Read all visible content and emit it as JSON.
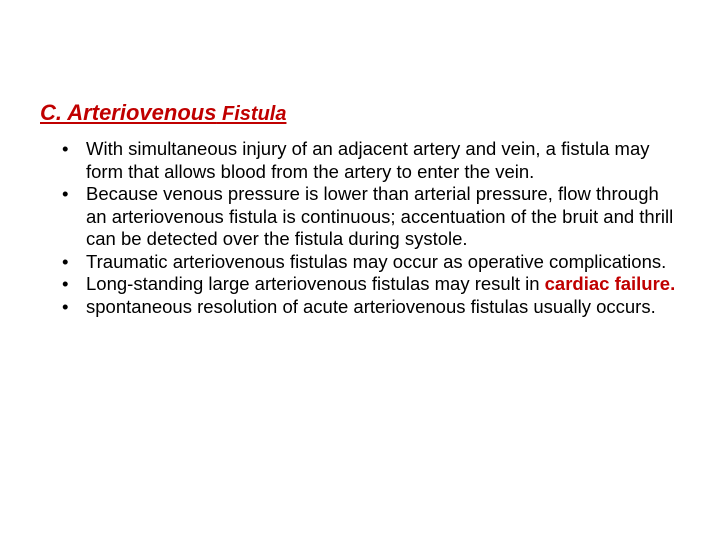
{
  "colors": {
    "heading": "#c00000",
    "body_text": "#000000",
    "highlight": "#c00000",
    "background": "#ffffff"
  },
  "heading": {
    "part1": "C. Arteriovenous",
    "part2": " Fistula"
  },
  "bullets": {
    "b1": "With simultaneous injury of an adjacent artery and vein, a fistula may form that allows blood from the artery to enter the vein.",
    "b2": " Because venous pressure is lower than arterial pressure, flow through an arteriovenous fistula is continuous; accentuation of the bruit and thrill can be detected over the fistula during systole.",
    "b3": "Traumatic arteriovenous fistulas may occur as operative complications.",
    "b4_pre": " Long-standing large arteriovenous fistulas may result in ",
    "b4_highlight": "cardiac failure.",
    "b5": "spontaneous resolution of acute arteriovenous fistulas usually occurs."
  }
}
